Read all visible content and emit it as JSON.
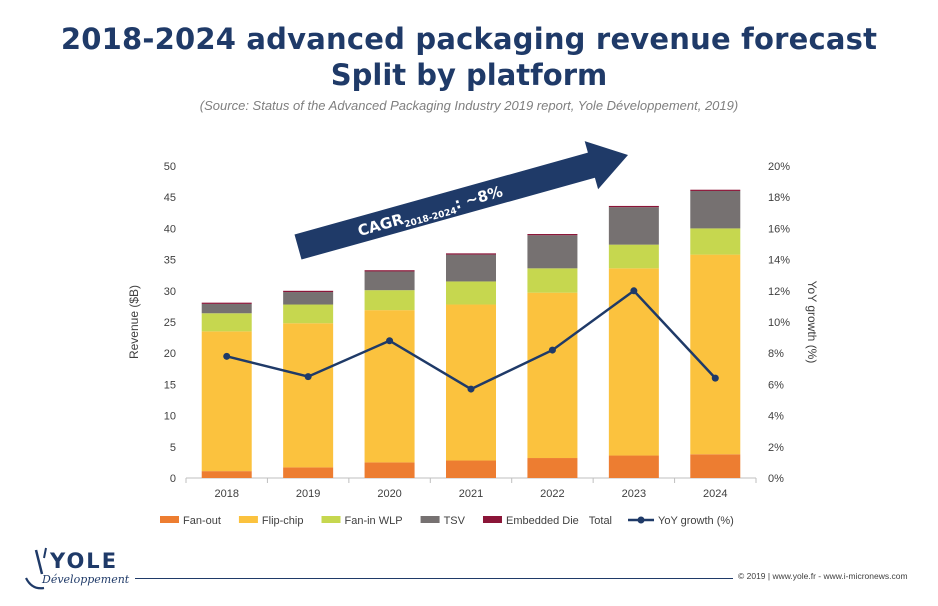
{
  "header": {
    "title_line1": "2018-2024 advanced packaging revenue forecast",
    "title_line2": "Split by platform",
    "source": "(Source: Status of the Advanced Packaging Industry 2019 report, Yole Développement, 2019)"
  },
  "chart_data": {
    "type": "bar",
    "stacked": true,
    "categories": [
      "2018",
      "2019",
      "2020",
      "2021",
      "2022",
      "2023",
      "2024"
    ],
    "series": [
      {
        "name": "Fan-out",
        "color": "#ed7d31",
        "values": [
          1.1,
          1.7,
          2.5,
          2.8,
          3.2,
          3.6,
          3.8
        ]
      },
      {
        "name": "Flip-chip",
        "color": "#fbc23e",
        "values": [
          22.4,
          23.1,
          24.4,
          25.0,
          26.5,
          30.0,
          32.0
        ]
      },
      {
        "name": "Fan-in WLP",
        "color": "#c6d74f",
        "values": [
          2.9,
          3.0,
          3.2,
          3.7,
          3.9,
          3.8,
          4.2
        ]
      },
      {
        "name": "TSV",
        "color": "#767171",
        "values": [
          1.5,
          2.0,
          3.0,
          4.3,
          5.3,
          6.0,
          6.0
        ]
      },
      {
        "name": "Embedded Die",
        "color": "#8b1538",
        "values": [
          0.2,
          0.2,
          0.2,
          0.2,
          0.2,
          0.2,
          0.2
        ]
      }
    ],
    "total_label": "Total",
    "line_series": {
      "name": "YoY growth (%)",
      "color": "#1f3a68",
      "axis": "right",
      "values": [
        7.8,
        6.5,
        8.8,
        5.7,
        8.2,
        12.0,
        6.4
      ]
    },
    "ylabel": "Revenue ($B)",
    "ylim": [
      0,
      50
    ],
    "yticks": [
      "0",
      "5",
      "10",
      "15",
      "20",
      "25",
      "30",
      "35",
      "40",
      "45",
      "50"
    ],
    "y2label": "YoY growth (%)",
    "y2lim": [
      0,
      20
    ],
    "y2ticks": [
      "0%",
      "2%",
      "4%",
      "6%",
      "8%",
      "10%",
      "12%",
      "14%",
      "16%",
      "18%",
      "20%"
    ],
    "annotation": {
      "text_main": "CAGR",
      "text_sub": "2018-2024",
      "text_tail": ": ~8%",
      "color": "#1f3a68"
    },
    "legend_position": "bottom"
  },
  "footer": {
    "logo_main": "YOLE",
    "logo_sub": "Développement",
    "copyright": "© 2019 | www.yole.fr - www.i-micronews.com"
  }
}
